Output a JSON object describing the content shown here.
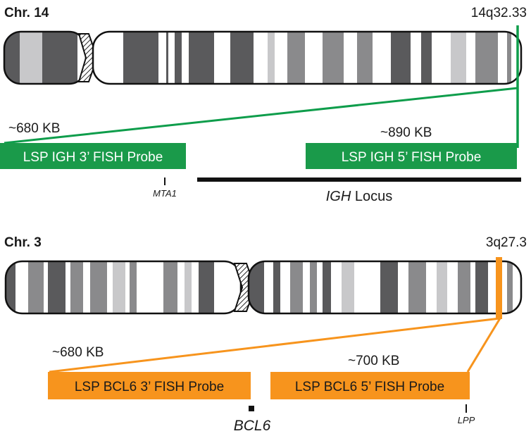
{
  "chr14": {
    "title": "Chr. 14",
    "band": "14q32.33",
    "size_3prime": "~680 KB",
    "size_5prime": "~890 KB",
    "probe_3prime": "LSP IGH 3’ FISH Probe",
    "probe_5prime": "LSP IGH 5’ FISH Probe",
    "marker_mta1": "MTA1",
    "locus_gene": "IGH",
    "locus_word": " Locus",
    "highlight_color": "#0e9d4b",
    "probe_color": "#1a9a4a"
  },
  "chr3": {
    "title": "Chr. 3",
    "band": "3q27.3",
    "size_3prime": "~680 KB",
    "size_5prime": "~700 KB",
    "probe_3prime": "LSP BCL6 3’ FISH Probe",
    "probe_5prime": "LSP BCL6 5’ FISH Probe",
    "marker_bcl6": "BCL6",
    "marker_lpp": "LPP",
    "highlight_color": "#f7941d",
    "probe_color": "#f7941d"
  }
}
